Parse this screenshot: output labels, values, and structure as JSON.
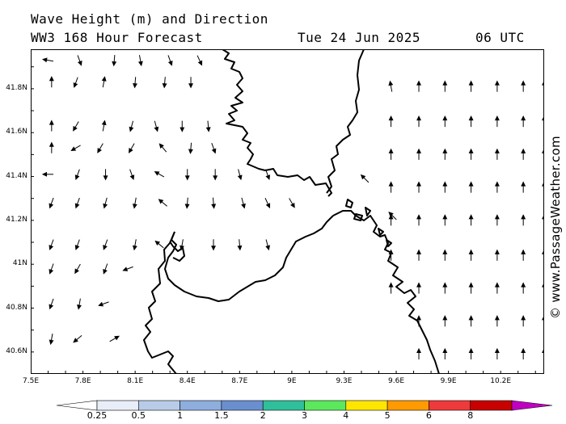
{
  "header": {
    "title": "Wave Height (m) and Direction",
    "subtitle": "WW3 168 Hour Forecast",
    "date": "Tue 24 Jun 2025",
    "time": "06 UTC"
  },
  "credit": "© www.PassageWeather.com",
  "axes": {
    "longitude_ticks": [
      "7.5E",
      "7.8E",
      "8.1E",
      "8.4E",
      "8.7E",
      "9E",
      "9.3E",
      "9.6E",
      "9.9E",
      "10.2E"
    ],
    "latitude_ticks": [
      "41.8N",
      "41.6N",
      "41.4N",
      "41.2N",
      "41N",
      "40.8N",
      "40.6N"
    ],
    "lon_range": [
      7.5,
      10.45
    ],
    "lat_range": [
      40.5,
      41.98
    ]
  },
  "colorbar": {
    "tick_labels": [
      "0.25",
      "0.5",
      "1",
      "1.5",
      "2",
      "3",
      "4",
      "5",
      "6",
      "8"
    ],
    "colors": [
      "#e8eef8",
      "#b8cce8",
      "#8eaedd",
      "#6a8fcf",
      "#2fbf9a",
      "#5ce85c",
      "#ffe600",
      "#ff9a00",
      "#ee3a3a",
      "#c80000",
      "#c000c0"
    ]
  },
  "map": {
    "sea_color": "#ffffff",
    "coast_color": "#000000",
    "arrows_rows": [
      {
        "lat": 41.93,
        "cells": [
          [
            7.6,
            280
          ],
          [
            7.78,
            160
          ],
          [
            7.98,
            185
          ],
          [
            8.13,
            170
          ],
          [
            8.3,
            160
          ],
          [
            8.47,
            155
          ]
        ]
      },
      {
        "lat": 41.83,
        "cells": [
          [
            7.62,
            0
          ],
          [
            7.76,
            200
          ],
          [
            7.92,
            10
          ],
          [
            8.1,
            185
          ],
          [
            8.27,
            185
          ],
          [
            8.42,
            180
          ]
        ]
      },
      {
        "lat": 41.63,
        "cells": [
          [
            7.62,
            0
          ],
          [
            7.76,
            210
          ],
          [
            7.92,
            10
          ],
          [
            8.08,
            195
          ],
          [
            8.22,
            165
          ],
          [
            8.37,
            180
          ],
          [
            8.52,
            175
          ]
        ]
      },
      {
        "lat": 41.53,
        "cells": [
          [
            7.62,
            0
          ],
          [
            7.76,
            240
          ],
          [
            7.9,
            210
          ],
          [
            8.08,
            210
          ],
          [
            8.26,
            320
          ],
          [
            8.42,
            185
          ],
          [
            8.55,
            160
          ]
        ]
      },
      {
        "lat": 41.41,
        "cells": [
          [
            7.6,
            270
          ],
          [
            7.77,
            200
          ],
          [
            7.93,
            180
          ],
          [
            8.08,
            160
          ],
          [
            8.24,
            300
          ],
          [
            8.4,
            180
          ],
          [
            8.56,
            180
          ],
          [
            8.7,
            165
          ],
          [
            8.86,
            160
          ]
        ]
      },
      {
        "lat": 41.28,
        "cells": [
          [
            7.62,
            200
          ],
          [
            7.77,
            200
          ],
          [
            7.93,
            195
          ],
          [
            8.1,
            190
          ],
          [
            8.26,
            310
          ],
          [
            8.4,
            185
          ],
          [
            8.55,
            175
          ],
          [
            8.72,
            165
          ],
          [
            8.86,
            155
          ],
          [
            9.0,
            150
          ]
        ]
      },
      {
        "lat": 41.09,
        "cells": [
          [
            7.62,
            200
          ],
          [
            7.77,
            200
          ],
          [
            7.93,
            200
          ],
          [
            8.1,
            190
          ],
          [
            8.24,
            310
          ],
          [
            8.37,
            190
          ],
          [
            8.55,
            180
          ],
          [
            8.7,
            175
          ],
          [
            8.86,
            165
          ]
        ]
      },
      {
        "lat": 40.98,
        "cells": [
          [
            7.62,
            200
          ],
          [
            7.77,
            210
          ],
          [
            7.93,
            200
          ],
          [
            8.06,
            250
          ]
        ]
      },
      {
        "lat": 40.82,
        "cells": [
          [
            7.62,
            200
          ],
          [
            7.78,
            190
          ],
          [
            7.92,
            250
          ]
        ]
      },
      {
        "lat": 40.66,
        "cells": [
          [
            7.62,
            190
          ],
          [
            7.77,
            230
          ],
          [
            7.98,
            60
          ]
        ]
      }
    ],
    "east_grid_rows": [
      41.81,
      41.65,
      41.5,
      41.35,
      41.2,
      41.04,
      40.89,
      40.74,
      40.59
    ],
    "east_grid_cols": [
      9.57,
      9.73,
      9.88,
      10.03,
      10.18,
      10.33,
      10.45
    ]
  }
}
